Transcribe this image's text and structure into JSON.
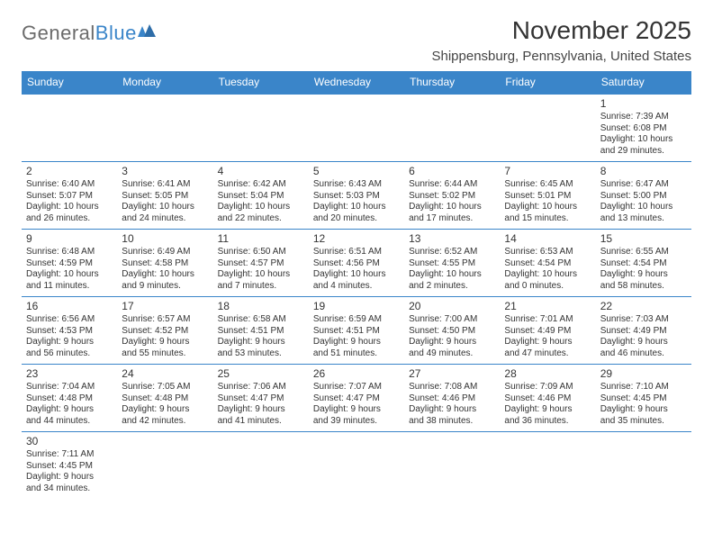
{
  "logo": {
    "text1": "General",
    "text2": "Blue"
  },
  "title": "November 2025",
  "location": "Shippensburg, Pennsylvania, United States",
  "colors": {
    "primary": "#3a85c9",
    "text": "#333333",
    "logo_gray": "#6b6b6b"
  },
  "weekdays": [
    "Sunday",
    "Monday",
    "Tuesday",
    "Wednesday",
    "Thursday",
    "Friday",
    "Saturday"
  ],
  "weeks": [
    [
      null,
      null,
      null,
      null,
      null,
      null,
      {
        "n": "1",
        "sr": "Sunrise: 7:39 AM",
        "ss": "Sunset: 6:08 PM",
        "d1": "Daylight: 10 hours",
        "d2": "and 29 minutes."
      }
    ],
    [
      {
        "n": "2",
        "sr": "Sunrise: 6:40 AM",
        "ss": "Sunset: 5:07 PM",
        "d1": "Daylight: 10 hours",
        "d2": "and 26 minutes."
      },
      {
        "n": "3",
        "sr": "Sunrise: 6:41 AM",
        "ss": "Sunset: 5:05 PM",
        "d1": "Daylight: 10 hours",
        "d2": "and 24 minutes."
      },
      {
        "n": "4",
        "sr": "Sunrise: 6:42 AM",
        "ss": "Sunset: 5:04 PM",
        "d1": "Daylight: 10 hours",
        "d2": "and 22 minutes."
      },
      {
        "n": "5",
        "sr": "Sunrise: 6:43 AM",
        "ss": "Sunset: 5:03 PM",
        "d1": "Daylight: 10 hours",
        "d2": "and 20 minutes."
      },
      {
        "n": "6",
        "sr": "Sunrise: 6:44 AM",
        "ss": "Sunset: 5:02 PM",
        "d1": "Daylight: 10 hours",
        "d2": "and 17 minutes."
      },
      {
        "n": "7",
        "sr": "Sunrise: 6:45 AM",
        "ss": "Sunset: 5:01 PM",
        "d1": "Daylight: 10 hours",
        "d2": "and 15 minutes."
      },
      {
        "n": "8",
        "sr": "Sunrise: 6:47 AM",
        "ss": "Sunset: 5:00 PM",
        "d1": "Daylight: 10 hours",
        "d2": "and 13 minutes."
      }
    ],
    [
      {
        "n": "9",
        "sr": "Sunrise: 6:48 AM",
        "ss": "Sunset: 4:59 PM",
        "d1": "Daylight: 10 hours",
        "d2": "and 11 minutes."
      },
      {
        "n": "10",
        "sr": "Sunrise: 6:49 AM",
        "ss": "Sunset: 4:58 PM",
        "d1": "Daylight: 10 hours",
        "d2": "and 9 minutes."
      },
      {
        "n": "11",
        "sr": "Sunrise: 6:50 AM",
        "ss": "Sunset: 4:57 PM",
        "d1": "Daylight: 10 hours",
        "d2": "and 7 minutes."
      },
      {
        "n": "12",
        "sr": "Sunrise: 6:51 AM",
        "ss": "Sunset: 4:56 PM",
        "d1": "Daylight: 10 hours",
        "d2": "and 4 minutes."
      },
      {
        "n": "13",
        "sr": "Sunrise: 6:52 AM",
        "ss": "Sunset: 4:55 PM",
        "d1": "Daylight: 10 hours",
        "d2": "and 2 minutes."
      },
      {
        "n": "14",
        "sr": "Sunrise: 6:53 AM",
        "ss": "Sunset: 4:54 PM",
        "d1": "Daylight: 10 hours",
        "d2": "and 0 minutes."
      },
      {
        "n": "15",
        "sr": "Sunrise: 6:55 AM",
        "ss": "Sunset: 4:54 PM",
        "d1": "Daylight: 9 hours",
        "d2": "and 58 minutes."
      }
    ],
    [
      {
        "n": "16",
        "sr": "Sunrise: 6:56 AM",
        "ss": "Sunset: 4:53 PM",
        "d1": "Daylight: 9 hours",
        "d2": "and 56 minutes."
      },
      {
        "n": "17",
        "sr": "Sunrise: 6:57 AM",
        "ss": "Sunset: 4:52 PM",
        "d1": "Daylight: 9 hours",
        "d2": "and 55 minutes."
      },
      {
        "n": "18",
        "sr": "Sunrise: 6:58 AM",
        "ss": "Sunset: 4:51 PM",
        "d1": "Daylight: 9 hours",
        "d2": "and 53 minutes."
      },
      {
        "n": "19",
        "sr": "Sunrise: 6:59 AM",
        "ss": "Sunset: 4:51 PM",
        "d1": "Daylight: 9 hours",
        "d2": "and 51 minutes."
      },
      {
        "n": "20",
        "sr": "Sunrise: 7:00 AM",
        "ss": "Sunset: 4:50 PM",
        "d1": "Daylight: 9 hours",
        "d2": "and 49 minutes."
      },
      {
        "n": "21",
        "sr": "Sunrise: 7:01 AM",
        "ss": "Sunset: 4:49 PM",
        "d1": "Daylight: 9 hours",
        "d2": "and 47 minutes."
      },
      {
        "n": "22",
        "sr": "Sunrise: 7:03 AM",
        "ss": "Sunset: 4:49 PM",
        "d1": "Daylight: 9 hours",
        "d2": "and 46 minutes."
      }
    ],
    [
      {
        "n": "23",
        "sr": "Sunrise: 7:04 AM",
        "ss": "Sunset: 4:48 PM",
        "d1": "Daylight: 9 hours",
        "d2": "and 44 minutes."
      },
      {
        "n": "24",
        "sr": "Sunrise: 7:05 AM",
        "ss": "Sunset: 4:48 PM",
        "d1": "Daylight: 9 hours",
        "d2": "and 42 minutes."
      },
      {
        "n": "25",
        "sr": "Sunrise: 7:06 AM",
        "ss": "Sunset: 4:47 PM",
        "d1": "Daylight: 9 hours",
        "d2": "and 41 minutes."
      },
      {
        "n": "26",
        "sr": "Sunrise: 7:07 AM",
        "ss": "Sunset: 4:47 PM",
        "d1": "Daylight: 9 hours",
        "d2": "and 39 minutes."
      },
      {
        "n": "27",
        "sr": "Sunrise: 7:08 AM",
        "ss": "Sunset: 4:46 PM",
        "d1": "Daylight: 9 hours",
        "d2": "and 38 minutes."
      },
      {
        "n": "28",
        "sr": "Sunrise: 7:09 AM",
        "ss": "Sunset: 4:46 PM",
        "d1": "Daylight: 9 hours",
        "d2": "and 36 minutes."
      },
      {
        "n": "29",
        "sr": "Sunrise: 7:10 AM",
        "ss": "Sunset: 4:45 PM",
        "d1": "Daylight: 9 hours",
        "d2": "and 35 minutes."
      }
    ],
    [
      {
        "n": "30",
        "sr": "Sunrise: 7:11 AM",
        "ss": "Sunset: 4:45 PM",
        "d1": "Daylight: 9 hours",
        "d2": "and 34 minutes."
      },
      null,
      null,
      null,
      null,
      null,
      null
    ]
  ]
}
